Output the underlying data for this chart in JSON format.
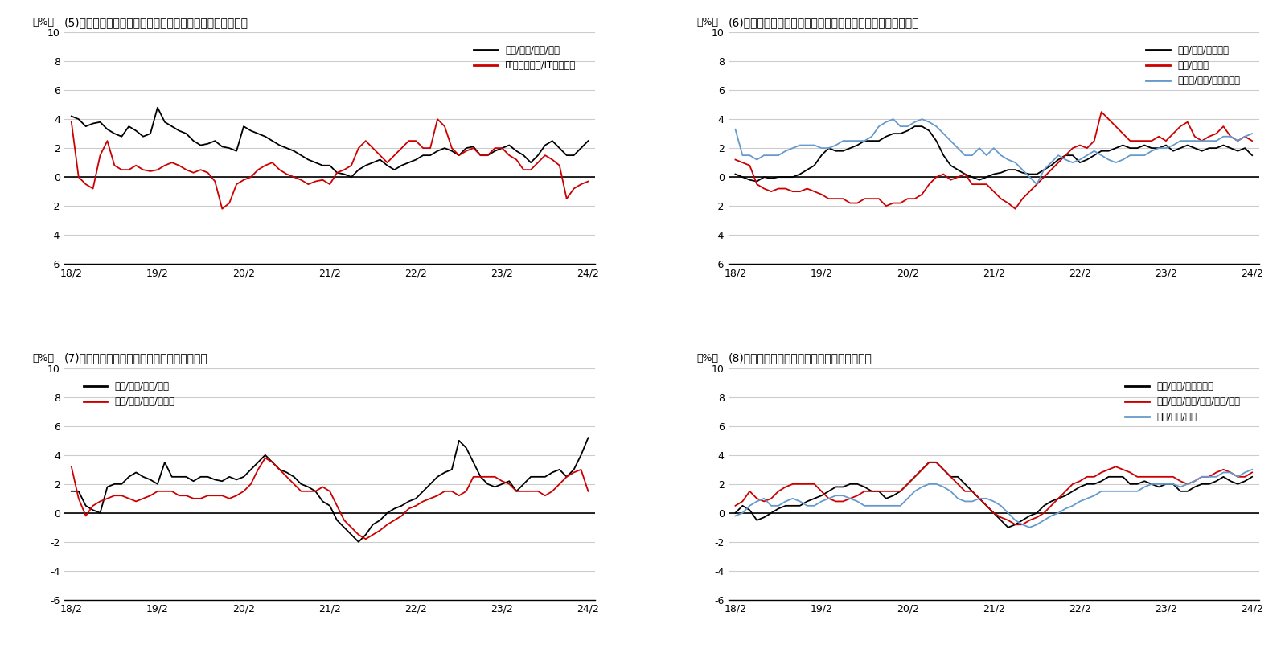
{
  "title5": "(5)募集賃金指数職種別（前年同期比）ホワイトカラー職種",
  "title6": "(6)募集賃金指数指数職種別（前年同期比）対面サービス職種",
  "title7": "(7)募集賃金指数職種別（前年同期比）製造業",
  "title8": "(8)募集賃金指数職種別（前年同期比）その他",
  "ylabel": "（%）",
  "ylim": [
    -6,
    10
  ],
  "yticks": [
    -6,
    -4,
    -2,
    0,
    2,
    4,
    6,
    8,
    10
  ],
  "xtick_labels": [
    "18/2",
    "19/2",
    "20/2",
    "21/2",
    "22/2",
    "23/2",
    "24/2"
  ],
  "legend5": [
    "営業/事務/企画/管理",
    "ITエンジニア/IT系専門職"
  ],
  "legend6": [
    "販売/接客/サービス",
    "飲食/フード",
    "ホテル/旅館/ブライダル"
  ],
  "legend7": [
    "製造/工場/化学/食品",
    "電気/電子/機械/自動車"
  ],
  "legend8": [
    "建設/土木/エネルギー",
    "運輸/物流/配送/警備/作業/調査",
    "医療/医薬/福祉"
  ],
  "colors_2line": [
    "#000000",
    "#cc0000"
  ],
  "colors_3line_6": [
    "#000000",
    "#cc0000",
    "#6699cc"
  ],
  "colors_3line_8": [
    "#000000",
    "#cc0000",
    "#6699cc"
  ],
  "n_points": 73,
  "chart5_line1": [
    4.2,
    4.0,
    3.5,
    3.7,
    3.8,
    3.3,
    3.0,
    2.8,
    3.5,
    3.2,
    2.8,
    3.0,
    4.8,
    3.8,
    3.5,
    3.2,
    3.0,
    2.5,
    2.2,
    2.3,
    2.5,
    2.1,
    2.0,
    1.8,
    3.5,
    3.2,
    3.0,
    2.8,
    2.5,
    2.2,
    2.0,
    1.8,
    1.5,
    1.2,
    1.0,
    0.8,
    0.8,
    0.3,
    0.2,
    0.0,
    0.5,
    0.8,
    1.0,
    1.2,
    0.8,
    0.5,
    0.8,
    1.0,
    1.2,
    1.5,
    1.5,
    1.8,
    2.0,
    1.8,
    1.5,
    2.0,
    2.1,
    1.5,
    1.5,
    1.8,
    2.0,
    2.2,
    1.8,
    1.5,
    1.0,
    1.5,
    2.2,
    2.5,
    2.0,
    1.5,
    1.5,
    2.0,
    2.5
  ],
  "chart5_line2": [
    3.8,
    0.0,
    -0.5,
    -0.8,
    1.5,
    2.5,
    0.8,
    0.5,
    0.5,
    0.8,
    0.5,
    0.4,
    0.5,
    0.8,
    1.0,
    0.8,
    0.5,
    0.3,
    0.5,
    0.3,
    -0.3,
    -2.2,
    -1.8,
    -0.5,
    -0.2,
    0.0,
    0.5,
    0.8,
    1.0,
    0.5,
    0.2,
    0.0,
    -0.2,
    -0.5,
    -0.3,
    -0.2,
    -0.5,
    0.3,
    0.5,
    0.8,
    2.0,
    2.5,
    2.0,
    1.5,
    1.0,
    1.5,
    2.0,
    2.5,
    2.5,
    2.0,
    2.0,
    4.0,
    3.5,
    2.0,
    1.5,
    1.8,
    2.0,
    1.5,
    1.5,
    2.0,
    2.0,
    1.5,
    1.2,
    0.5,
    0.5,
    1.0,
    1.5,
    1.2,
    0.8,
    -1.5,
    -0.8,
    -0.5,
    -0.3
  ],
  "chart6_line1": [
    0.2,
    0.0,
    -0.2,
    -0.3,
    0.0,
    -0.1,
    0.0,
    0.0,
    0.0,
    0.2,
    0.5,
    0.8,
    1.5,
    2.0,
    1.8,
    1.8,
    2.0,
    2.2,
    2.5,
    2.5,
    2.5,
    2.8,
    3.0,
    3.0,
    3.2,
    3.5,
    3.5,
    3.2,
    2.5,
    1.5,
    0.8,
    0.5,
    0.2,
    0.0,
    -0.2,
    0.0,
    0.2,
    0.3,
    0.5,
    0.5,
    0.3,
    0.2,
    0.2,
    0.5,
    0.8,
    1.2,
    1.5,
    1.5,
    1.0,
    1.2,
    1.5,
    1.8,
    1.8,
    2.0,
    2.2,
    2.0,
    2.0,
    2.2,
    2.0,
    2.0,
    2.2,
    1.8,
    2.0,
    2.2,
    2.0,
    1.8,
    2.0,
    2.0,
    2.2,
    2.0,
    1.8,
    2.0,
    1.5
  ],
  "chart6_line2": [
    1.2,
    1.0,
    0.8,
    -0.5,
    -0.8,
    -1.0,
    -0.8,
    -0.8,
    -1.0,
    -1.0,
    -0.8,
    -1.0,
    -1.2,
    -1.5,
    -1.5,
    -1.5,
    -1.8,
    -1.8,
    -1.5,
    -1.5,
    -1.5,
    -2.0,
    -1.8,
    -1.8,
    -1.5,
    -1.5,
    -1.2,
    -0.5,
    0.0,
    0.2,
    -0.2,
    0.0,
    0.2,
    -0.5,
    -0.5,
    -0.5,
    -1.0,
    -1.5,
    -1.8,
    -2.2,
    -1.5,
    -1.0,
    -0.5,
    0.0,
    0.5,
    1.0,
    1.5,
    2.0,
    2.2,
    2.0,
    2.5,
    4.5,
    4.0,
    3.5,
    3.0,
    2.5,
    2.5,
    2.5,
    2.5,
    2.8,
    2.5,
    3.0,
    3.5,
    3.8,
    2.8,
    2.5,
    2.8,
    3.0,
    3.5,
    2.8,
    2.5,
    2.8,
    2.5
  ],
  "chart6_line3": [
    3.3,
    1.5,
    1.5,
    1.2,
    1.5,
    1.5,
    1.5,
    1.8,
    2.0,
    2.2,
    2.2,
    2.2,
    2.0,
    2.0,
    2.2,
    2.5,
    2.5,
    2.5,
    2.5,
    2.8,
    3.5,
    3.8,
    4.0,
    3.5,
    3.5,
    3.8,
    4.0,
    3.8,
    3.5,
    3.0,
    2.5,
    2.0,
    1.5,
    1.5,
    2.0,
    1.5,
    2.0,
    1.5,
    1.2,
    1.0,
    0.5,
    0.0,
    -0.5,
    0.5,
    1.0,
    1.5,
    1.2,
    1.0,
    1.2,
    1.5,
    1.8,
    1.5,
    1.2,
    1.0,
    1.2,
    1.5,
    1.5,
    1.5,
    1.8,
    2.0,
    2.0,
    2.2,
    2.5,
    2.5,
    2.5,
    2.5,
    2.5,
    2.5,
    2.8,
    2.8,
    2.5,
    2.8,
    3.0
  ],
  "chart7_line1": [
    1.5,
    1.5,
    0.5,
    0.2,
    0.0,
    1.8,
    2.0,
    2.0,
    2.5,
    2.8,
    2.5,
    2.3,
    2.0,
    3.5,
    2.5,
    2.5,
    2.5,
    2.2,
    2.5,
    2.5,
    2.3,
    2.2,
    2.5,
    2.3,
    2.5,
    3.0,
    3.5,
    4.0,
    3.5,
    3.0,
    2.8,
    2.5,
    2.0,
    1.8,
    1.5,
    0.8,
    0.5,
    -0.5,
    -1.0,
    -1.5,
    -2.0,
    -1.5,
    -0.8,
    -0.5,
    0.0,
    0.3,
    0.5,
    0.8,
    1.0,
    1.5,
    2.0,
    2.5,
    2.8,
    3.0,
    5.0,
    4.5,
    3.5,
    2.5,
    2.0,
    1.8,
    2.0,
    2.2,
    1.5,
    2.0,
    2.5,
    2.5,
    2.5,
    2.8,
    3.0,
    2.5,
    3.0,
    4.0,
    5.2
  ],
  "chart7_line2": [
    3.2,
    1.0,
    -0.2,
    0.5,
    0.8,
    1.0,
    1.2,
    1.2,
    1.0,
    0.8,
    1.0,
    1.2,
    1.5,
    1.5,
    1.5,
    1.2,
    1.2,
    1.0,
    1.0,
    1.2,
    1.2,
    1.2,
    1.0,
    1.2,
    1.5,
    2.0,
    3.0,
    3.8,
    3.5,
    3.0,
    2.5,
    2.0,
    1.5,
    1.5,
    1.5,
    1.8,
    1.5,
    0.5,
    -0.5,
    -1.0,
    -1.5,
    -1.8,
    -1.5,
    -1.2,
    -0.8,
    -0.5,
    -0.2,
    0.3,
    0.5,
    0.8,
    1.0,
    1.2,
    1.5,
    1.5,
    1.2,
    1.5,
    2.5,
    2.5,
    2.5,
    2.5,
    2.2,
    2.0,
    1.5,
    1.5,
    1.5,
    1.5,
    1.2,
    1.5,
    2.0,
    2.5,
    2.8,
    3.0,
    1.5
  ],
  "chart8_line1": [
    0.0,
    0.5,
    0.2,
    -0.5,
    -0.3,
    0.0,
    0.3,
    0.5,
    0.5,
    0.5,
    0.8,
    1.0,
    1.2,
    1.5,
    1.8,
    1.8,
    2.0,
    2.0,
    1.8,
    1.5,
    1.5,
    1.0,
    1.2,
    1.5,
    2.0,
    2.5,
    3.0,
    3.5,
    3.5,
    3.0,
    2.5,
    2.5,
    2.0,
    1.5,
    1.0,
    0.5,
    0.0,
    -0.5,
    -1.0,
    -0.8,
    -0.5,
    -0.2,
    0.0,
    0.5,
    0.8,
    1.0,
    1.2,
    1.5,
    1.8,
    2.0,
    2.0,
    2.2,
    2.5,
    2.5,
    2.5,
    2.0,
    2.0,
    2.2,
    2.0,
    1.8,
    2.0,
    2.0,
    1.5,
    1.5,
    1.8,
    2.0,
    2.0,
    2.2,
    2.5,
    2.2,
    2.0,
    2.2,
    2.5
  ],
  "chart8_line2": [
    0.5,
    0.8,
    1.5,
    1.0,
    0.8,
    1.0,
    1.5,
    1.8,
    2.0,
    2.0,
    2.0,
    2.0,
    1.5,
    1.0,
    0.8,
    0.8,
    1.0,
    1.2,
    1.5,
    1.5,
    1.5,
    1.5,
    1.5,
    1.5,
    2.0,
    2.5,
    3.0,
    3.5,
    3.5,
    3.0,
    2.5,
    2.0,
    1.5,
    1.5,
    1.0,
    0.5,
    0.0,
    -0.3,
    -0.5,
    -0.8,
    -0.8,
    -0.5,
    -0.3,
    0.0,
    0.5,
    1.0,
    1.5,
    2.0,
    2.2,
    2.5,
    2.5,
    2.8,
    3.0,
    3.2,
    3.0,
    2.8,
    2.5,
    2.5,
    2.5,
    2.5,
    2.5,
    2.5,
    2.2,
    2.0,
    2.2,
    2.5,
    2.5,
    2.8,
    3.0,
    2.8,
    2.5,
    2.5,
    2.8
  ],
  "chart8_line3": [
    -0.2,
    0.0,
    0.5,
    0.8,
    1.0,
    0.5,
    0.5,
    0.8,
    1.0,
    0.8,
    0.5,
    0.5,
    0.8,
    1.0,
    1.2,
    1.2,
    1.0,
    0.8,
    0.5,
    0.5,
    0.5,
    0.5,
    0.5,
    0.5,
    1.0,
    1.5,
    1.8,
    2.0,
    2.0,
    1.8,
    1.5,
    1.0,
    0.8,
    0.8,
    1.0,
    1.0,
    0.8,
    0.5,
    0.0,
    -0.5,
    -0.8,
    -1.0,
    -0.8,
    -0.5,
    -0.2,
    0.0,
    0.3,
    0.5,
    0.8,
    1.0,
    1.2,
    1.5,
    1.5,
    1.5,
    1.5,
    1.5,
    1.5,
    1.8,
    2.0,
    2.0,
    2.0,
    2.0,
    1.8,
    2.0,
    2.2,
    2.5,
    2.5,
    2.5,
    2.8,
    2.8,
    2.5,
    2.8,
    3.0
  ]
}
